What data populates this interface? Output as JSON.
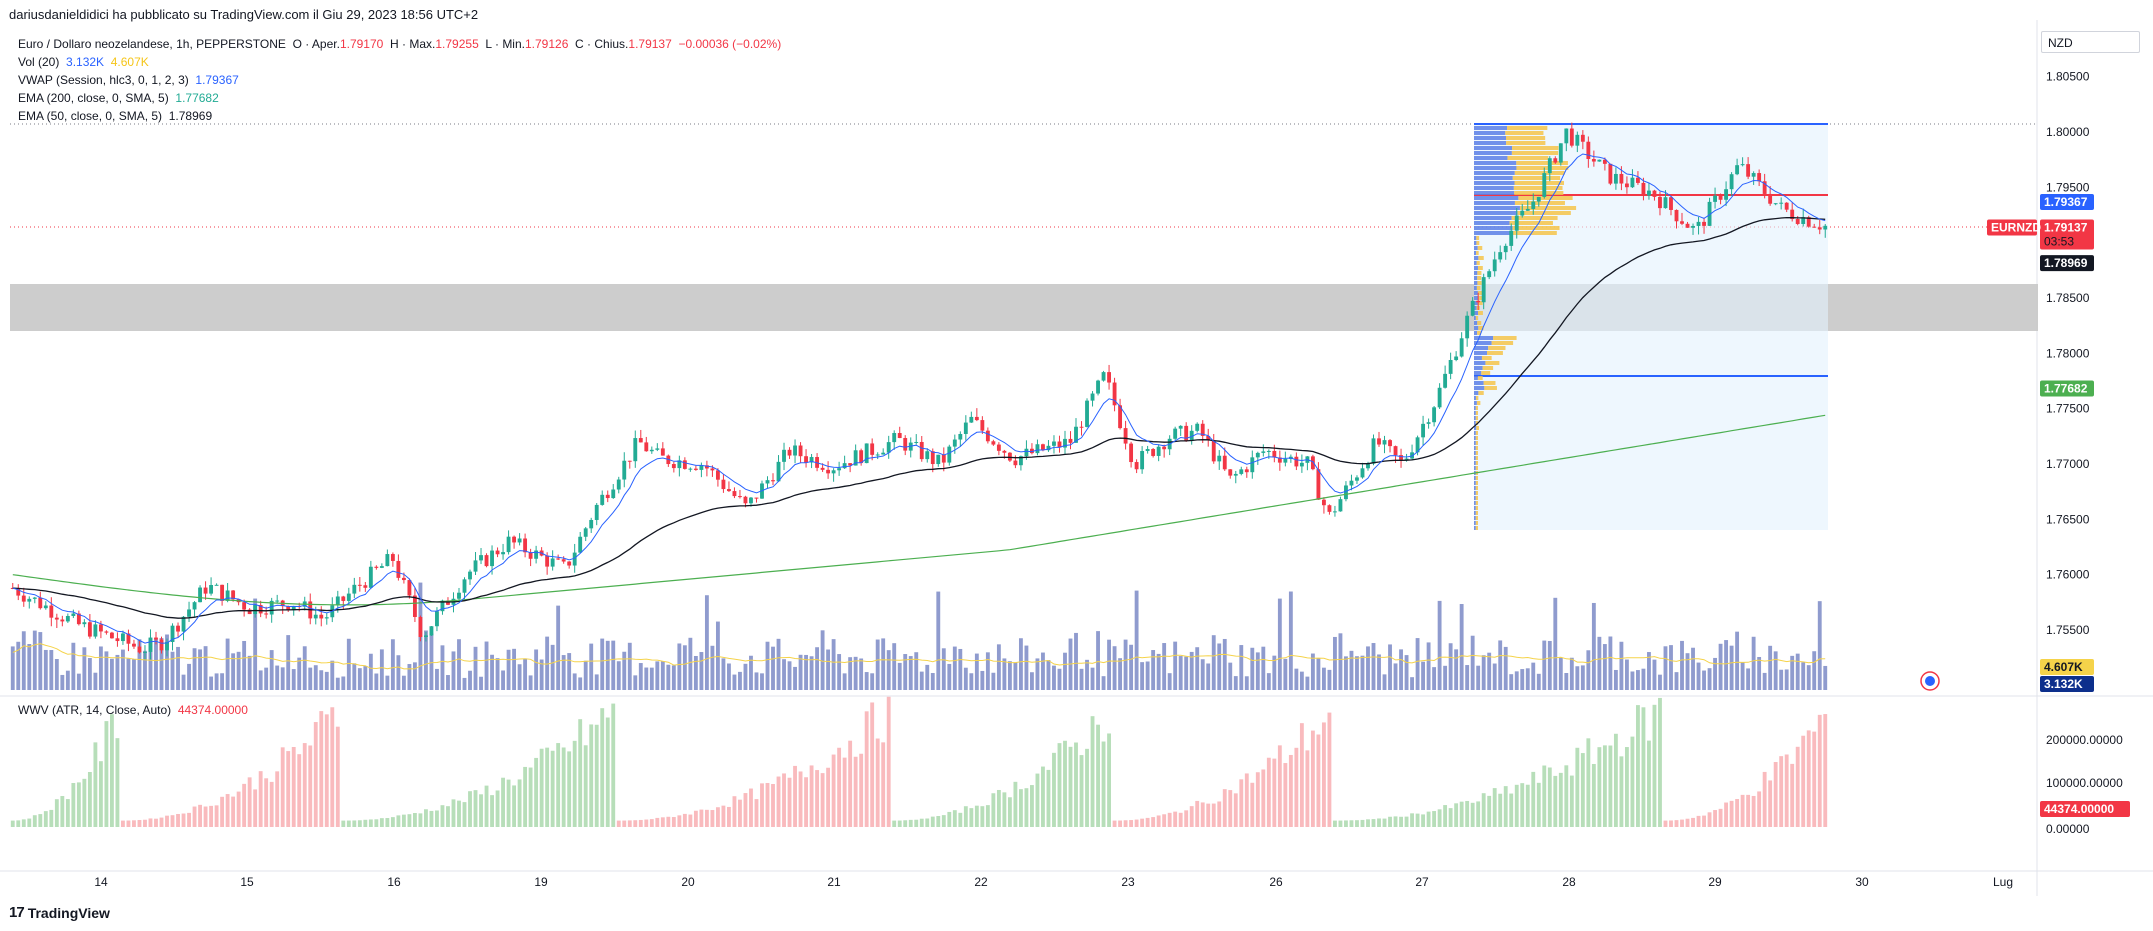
{
  "header": {
    "published_line": "dariusdanieldidici ha pubblicato su TradingView.com il Giu 29, 2023 18:56 UTC+2"
  },
  "legend": {
    "symbol_line": "Euro / Dollaro neozelandese, 1h, PEPPERSTONE",
    "o_label": "O · Aper.",
    "o_value": "1.79170",
    "h_label": "H · Max.",
    "h_value": "1.79255",
    "l_label": "L · Min.",
    "l_value": "1.79126",
    "c_label": "C · Chius.",
    "c_value": "1.79137",
    "change": "−0.00036 (−0.02%)",
    "vol_label": "Vol (20)",
    "vol_value": "3.132K",
    "vol_ma": "4.607K",
    "vwap_label": "VWAP (Session, hlc3, 0, 1, 2, 3)",
    "vwap_value": "1.79367",
    "ema200_label": "EMA (200, close, 0, SMA, 5)",
    "ema200_value": "1.77682",
    "ema50_label": "EMA (50, close, 0, SMA, 5)",
    "ema50_value": "1.78969",
    "wwv_label": "WWV (ATR, 14, Close, Auto)",
    "wwv_value": "44374.00000"
  },
  "currency": "NZD",
  "branding": "TradingView",
  "colors": {
    "up": "#22ab94",
    "down": "#f23645",
    "vwap": "#2962ff",
    "ema50": "#131722",
    "ema200": "#4caf50",
    "volume": "#7b8ac6",
    "volume_ma": "#f5d34a",
    "zone": "#c8c8c8",
    "profile_box": "#e3f2fd",
    "poc": "#f23645"
  },
  "price_scale": {
    "ticks": [
      "1.80500",
      "1.80000",
      "1.79500",
      "1.79000",
      "1.78500",
      "1.78000",
      "1.77500",
      "1.77000",
      "1.76500",
      "1.76000",
      "1.75500"
    ],
    "ticks_values": [
      1.805,
      1.8,
      1.795,
      1.79,
      1.785,
      1.78,
      1.775,
      1.77,
      1.765,
      1.76,
      1.755
    ],
    "tags": [
      {
        "name": "vwap-tag",
        "text": "1.79367",
        "value": 1.79367,
        "bg": "#2962ff",
        "fg": "#ffffff"
      },
      {
        "name": "last-price-tag",
        "text": "1.79137",
        "sub": "03:53",
        "value": 1.79137,
        "bg": "#f23645",
        "fg": "#ffffff"
      },
      {
        "name": "ema50-tag",
        "text": "1.78969",
        "value": 1.78969,
        "bg": "#131722",
        "fg": "#ffffff"
      },
      {
        "name": "ema200-tag",
        "text": "1.77682",
        "value": 1.77682,
        "bg": "#4caf50",
        "fg": "#ffffff"
      },
      {
        "name": "volume-ma-tag",
        "text": "4.607K",
        "bg": "#f5d34a",
        "fg": "#131722"
      },
      {
        "name": "volume-tag",
        "text": "3.132K",
        "bg": "#0d2f8c",
        "fg": "#ffffff"
      }
    ],
    "symbol_tag": "EURNZD"
  },
  "wwv_scale": {
    "ticks": [
      "200000.00000",
      "100000.00000",
      "0.00000"
    ],
    "current_tag": "44374.00000"
  },
  "time_axis": {
    "labels": [
      "14",
      "15",
      "16",
      "19",
      "20",
      "21",
      "22",
      "23",
      "26",
      "27",
      "28",
      "29",
      "30",
      "Lug"
    ]
  }
}
